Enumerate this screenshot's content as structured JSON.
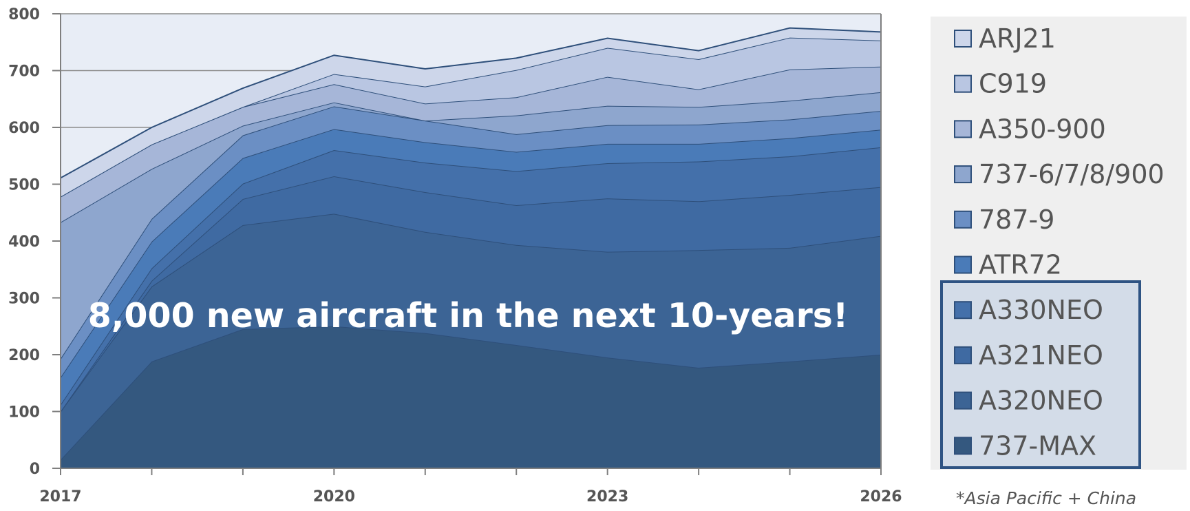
{
  "chart_data": {
    "type": "area",
    "stacked": true,
    "x": [
      2017,
      2018,
      2019,
      2020,
      2021,
      2022,
      2023,
      2024,
      2025,
      2026
    ],
    "xticks": [
      "2017",
      "2020",
      "2023",
      "2026"
    ],
    "ylim": [
      0,
      800
    ],
    "yticks": [
      "0",
      "100",
      "200",
      "300",
      "400",
      "500",
      "600",
      "700",
      "800"
    ],
    "grid": true,
    "legend_position": "right",
    "annotation": "8,000 new aircraft in the next 10-years!",
    "footnote": "*Asia Pacific + China",
    "highlighted_legend": [
      "A330NEO",
      "A321NEO",
      "A320NEO",
      "737-MAX"
    ],
    "series": [
      {
        "name": "737-MAX",
        "color": "#34587f",
        "values": [
          15,
          188,
          245,
          250,
          238,
          217,
          195,
          177,
          188,
          200
        ]
      },
      {
        "name": "A320NEO",
        "color": "#3c6495",
        "values": [
          85,
          132,
          183,
          198,
          178,
          176,
          186,
          207,
          200,
          209
        ]
      },
      {
        "name": "A321NEO",
        "color": "#3f6aa2",
        "values": [
          0,
          10,
          46,
          66,
          70,
          70,
          94,
          86,
          93,
          86
        ]
      },
      {
        "name": "A330NEO",
        "color": "#4470aa",
        "values": [
          12,
          22,
          27,
          46,
          52,
          60,
          62,
          70,
          68,
          70
        ]
      },
      {
        "name": "ATR72",
        "color": "#4a7bb8",
        "values": [
          48,
          47,
          45,
          37,
          36,
          34,
          34,
          31,
          32,
          31
        ]
      },
      {
        "name": "787-9",
        "color": "#6b8fc4",
        "values": [
          33,
          40,
          40,
          40,
          38,
          31,
          33,
          34,
          33,
          33
        ]
      },
      {
        "name": "737-6/7/8/900",
        "color": "#8ea6ce",
        "values": [
          240,
          88,
          17,
          7,
          0,
          33,
          34,
          31,
          33,
          33
        ]
      },
      {
        "name": "A350-900",
        "color": "#a6b6d8",
        "values": [
          45,
          43,
          33,
          32,
          30,
          32,
          51,
          31,
          55,
          45
        ]
      },
      {
        "name": "C919",
        "color": "#b9c6e2",
        "values": [
          0,
          0,
          0,
          18,
          30,
          48,
          51,
          53,
          56,
          46
        ]
      },
      {
        "name": "ARJ21",
        "color": "#cdd6ea",
        "values": [
          33,
          30,
          33,
          33,
          31,
          21,
          17,
          15,
          17,
          15
        ]
      }
    ]
  }
}
